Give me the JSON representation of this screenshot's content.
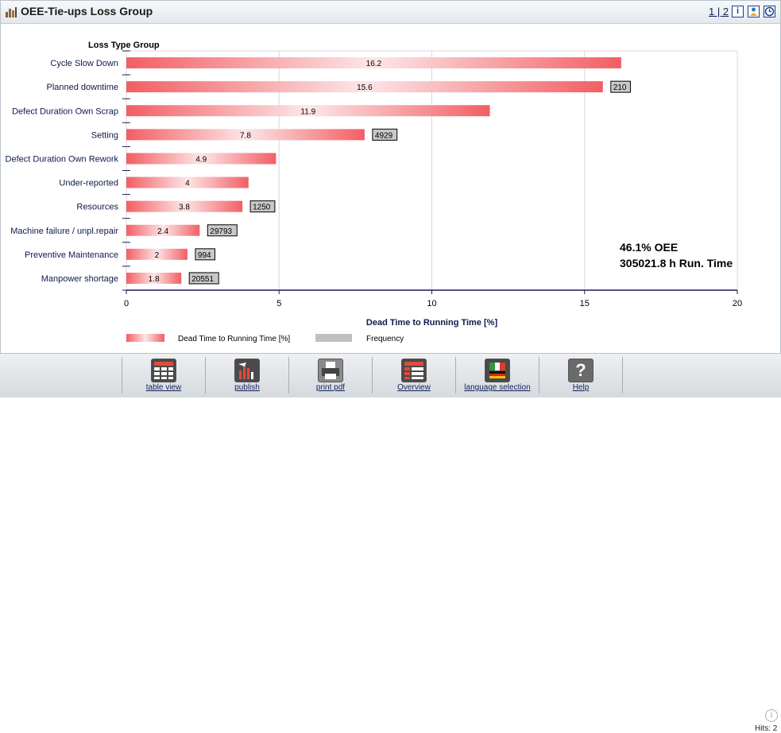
{
  "header": {
    "title": "OEE-Tie-ups Loss Group",
    "pager": "1 | 2",
    "icons": [
      "bar-chart-icon",
      "info-icon",
      "person-icon",
      "clock-icon"
    ]
  },
  "chart_data": {
    "type": "bar",
    "orientation": "horizontal",
    "category_axis_title": "Loss Type Group",
    "xlabel": "Dead Time to Running Time [%]",
    "xlim": [
      0,
      20
    ],
    "xticks": [
      0,
      5,
      10,
      15,
      20
    ],
    "grid": true,
    "categories": [
      "Cycle Slow Down",
      "Planned downtime",
      "Defect Duration Own Scrap",
      "Setting",
      "Defect Duration Own Rework",
      "Under-reported",
      "Resources",
      "Machine failure / unpl.repair",
      "Preventive Maintenance",
      "Manpower shortage"
    ],
    "series": [
      {
        "name": "Dead Time to Running Time [%]",
        "values": [
          16.2,
          15.6,
          11.9,
          7.8,
          4.9,
          4,
          3.8,
          2.4,
          2,
          1.8
        ],
        "color": "#f25e64"
      },
      {
        "name": "Frequency",
        "values": [
          null,
          210,
          null,
          4929,
          null,
          null,
          1250,
          29793,
          994,
          20551
        ],
        "color": "#c0c0c0"
      }
    ],
    "legend_position": "bottom-left",
    "annotations": [
      "46.1% OEE",
      "305021.8 h Run. Time"
    ]
  },
  "toolbar": {
    "items": [
      {
        "label": "table view",
        "icon": "table-icon"
      },
      {
        "label": "publish",
        "icon": "publish-icon"
      },
      {
        "label": "print pdf",
        "icon": "printer-icon"
      },
      {
        "label": "Overview",
        "icon": "overview-icon"
      },
      {
        "label": "language selection",
        "icon": "flag-icon"
      },
      {
        "label": "Help",
        "icon": "help-icon"
      }
    ]
  },
  "hits": "Hits: 2",
  "colors": {
    "bar": "#f25e64",
    "frequency_box": "#c8c8c8",
    "axis": "#1a1a5a",
    "label": "#0e1a4a"
  }
}
